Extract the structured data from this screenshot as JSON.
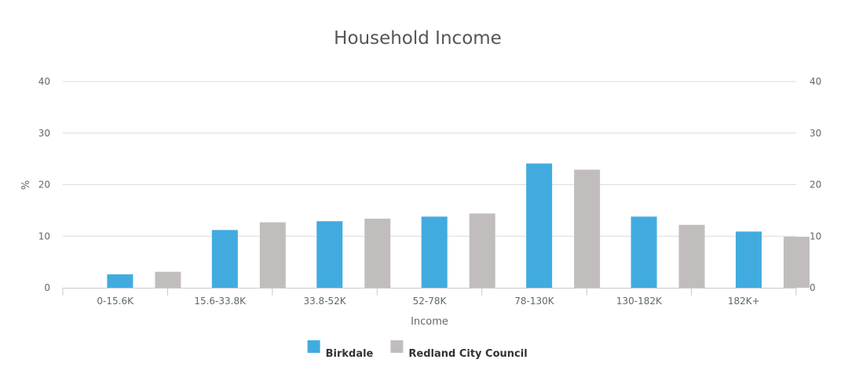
{
  "chart_data": {
    "type": "bar",
    "title": "Household Income",
    "xlabel": "Income",
    "ylabel": "%",
    "ylim": [
      0,
      40
    ],
    "yticks": [
      0,
      10,
      20,
      30,
      40
    ],
    "grid": true,
    "legend_position": "bottom-center",
    "categories": [
      "0-15.6K",
      "15.6-33.8K",
      "33.8-52K",
      "52-78K",
      "78-130K",
      "130-182K",
      "182K+"
    ],
    "series": [
      {
        "name": "Birkdale",
        "color": "#41abe0",
        "values": [
          2.6,
          11.2,
          12.9,
          13.8,
          24.1,
          13.8,
          10.9
        ]
      },
      {
        "name": "Redland City Council",
        "color": "#c2bdbd",
        "values": [
          3.1,
          12.7,
          13.4,
          14.4,
          22.9,
          12.2,
          9.9
        ]
      }
    ]
  }
}
